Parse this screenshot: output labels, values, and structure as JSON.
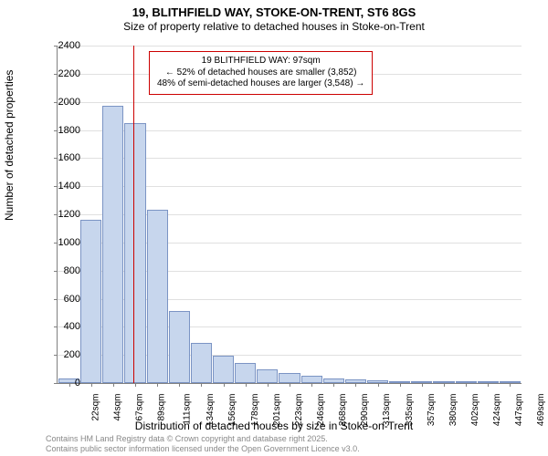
{
  "title": "19, BLITHFIELD WAY, STOKE-ON-TRENT, ST6 8GS",
  "subtitle": "Size of property relative to detached houses in Stoke-on-Trent",
  "chart": {
    "type": "histogram",
    "ylabel": "Number of detached properties",
    "xlabel": "Distribution of detached houses by size in Stoke-on-Trent",
    "ylim": [
      0,
      2400
    ],
    "ytick_step": 200,
    "yticks": [
      0,
      200,
      400,
      600,
      800,
      1000,
      1200,
      1400,
      1600,
      1800,
      2000,
      2200,
      2400
    ],
    "x_categories": [
      "22sqm",
      "44sqm",
      "67sqm",
      "89sqm",
      "111sqm",
      "134sqm",
      "156sqm",
      "178sqm",
      "201sqm",
      "223sqm",
      "246sqm",
      "268sqm",
      "290sqm",
      "313sqm",
      "335sqm",
      "357sqm",
      "380sqm",
      "402sqm",
      "424sqm",
      "447sqm",
      "469sqm"
    ],
    "values": [
      35,
      1160,
      1970,
      1850,
      1230,
      510,
      285,
      195,
      140,
      100,
      70,
      50,
      35,
      25,
      18,
      14,
      8,
      5,
      3,
      2,
      2
    ],
    "bar_fill": "#c7d6ed",
    "bar_stroke": "#7b94c4",
    "grid_color": "#e0e0e0",
    "axis_color": "#808080",
    "marker_color": "#cc0000",
    "marker_x_index": 3.4,
    "annotation": {
      "line1": "19 BLITHFIELD WAY: 97sqm",
      "line2": "← 52% of detached houses are smaller (3,852)",
      "line3": "48% of semi-detached houses are larger (3,548) →"
    }
  },
  "footer": {
    "line1": "Contains HM Land Registry data © Crown copyright and database right 2025.",
    "line2": "Contains public sector information licensed under the Open Government Licence v3.0."
  }
}
